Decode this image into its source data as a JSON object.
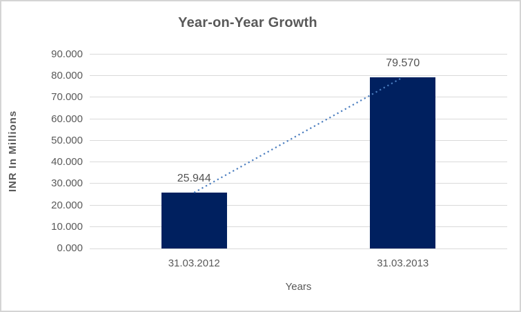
{
  "chart_data": {
    "type": "bar",
    "title": "Year-on-Year Growth",
    "xlabel": "Years",
    "ylabel": "INR In Millions",
    "categories": [
      "31.03.2012",
      "31.03.2013"
    ],
    "values": [
      25.944,
      79.57
    ],
    "data_labels": [
      "25.944",
      "79.570"
    ],
    "y_ticks": [
      "0.000",
      "10.000",
      "20.000",
      "30.000",
      "40.000",
      "50.000",
      "60.000",
      "70.000",
      "80.000",
      "90.000"
    ],
    "ylim": [
      0,
      90
    ],
    "grid": true,
    "legend": "none",
    "trendline": {
      "style": "dotted",
      "from_series_point": 0,
      "to_series_point": 1
    }
  },
  "colors": {
    "bar": "#00205f",
    "trendline": "#4a7dbf",
    "gridline": "#d9d9d9",
    "axis_line": "#d9d9d9",
    "title_text": "#595959",
    "axis_text": "#595959",
    "data_label_text": "#525252",
    "border": "#d4d4d4",
    "background": "#ffffff"
  }
}
